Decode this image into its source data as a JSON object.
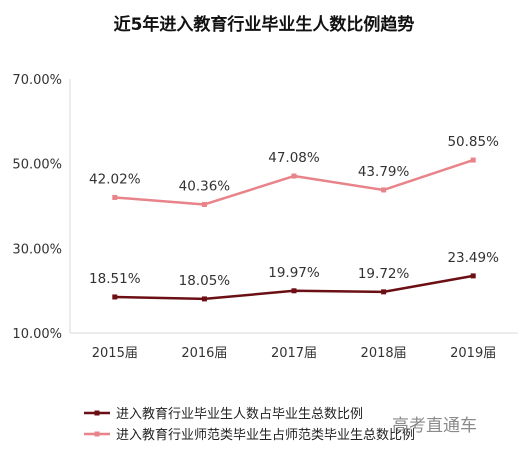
{
  "chart_data": {
    "type": "line",
    "title": "近5年进入教育行业毕业生人数比例趋势",
    "categories": [
      "2015届",
      "2016届",
      "2017届",
      "2018届",
      "2019届"
    ],
    "series": [
      {
        "name": "进入教育行业师范类毕业生占师范类毕业生总数比例",
        "values": [
          42.02,
          40.36,
          47.08,
          43.79,
          50.85
        ],
        "labels": [
          "42.02%",
          "40.36%",
          "47.08%",
          "43.79%",
          "50.85%"
        ],
        "color": "#e8838a"
      },
      {
        "name": "进入教育行业毕业生人数占毕业生总数比例",
        "values": [
          18.51,
          18.05,
          19.97,
          19.72,
          23.49
        ],
        "labels": [
          "18.51%",
          "18.05%",
          "19.97%",
          "19.72%",
          "23.49%"
        ],
        "color": "#6b0f14"
      }
    ],
    "ylim": [
      10,
      70
    ],
    "yticks": [
      10,
      30,
      50,
      70
    ],
    "ytick_labels": [
      "10.00%",
      "30.00%",
      "50.00%",
      "70.00%"
    ],
    "grid": false,
    "legend_position": "bottom"
  },
  "watermark": "高考直通车"
}
